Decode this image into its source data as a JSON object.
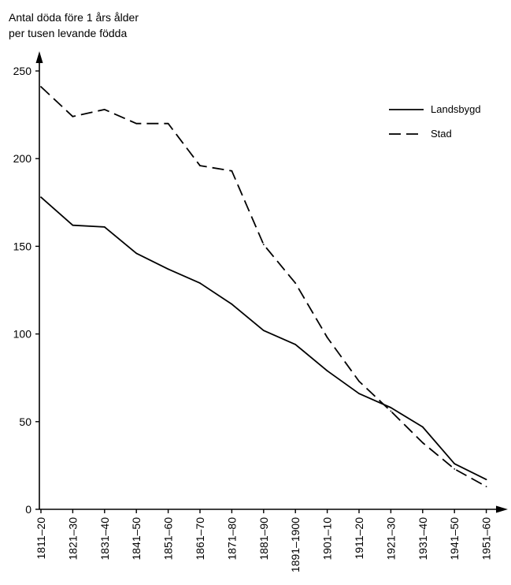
{
  "chart_data": {
    "type": "line",
    "ylabel_lines": [
      "Antal döda före 1 års ålder",
      "per tusen levande födda"
    ],
    "xlabel": "",
    "categories": [
      "1811–20",
      "1821–30",
      "1831–40",
      "1841–50",
      "1851–60",
      "1861–70",
      "1871–80",
      "1881–90",
      "1891–1900",
      "1901–10",
      "1911–20",
      "1921–30",
      "1931–40",
      "1941–50",
      "1951–60"
    ],
    "ylim": [
      0,
      250
    ],
    "yticks": [
      0,
      50,
      100,
      150,
      200,
      250
    ],
    "grid": false,
    "legend_position": "top-right",
    "series": [
      {
        "name": "Landsbygd",
        "style": "solid",
        "values": [
          178,
          162,
          161,
          146,
          137,
          129,
          117,
          102,
          94,
          79,
          66,
          58,
          47,
          26,
          17
        ]
      },
      {
        "name": "Stad",
        "style": "dashed",
        "values": [
          241,
          224,
          228,
          220,
          220,
          196,
          193,
          151,
          129,
          98,
          73,
          56,
          38,
          23,
          13
        ]
      }
    ]
  }
}
